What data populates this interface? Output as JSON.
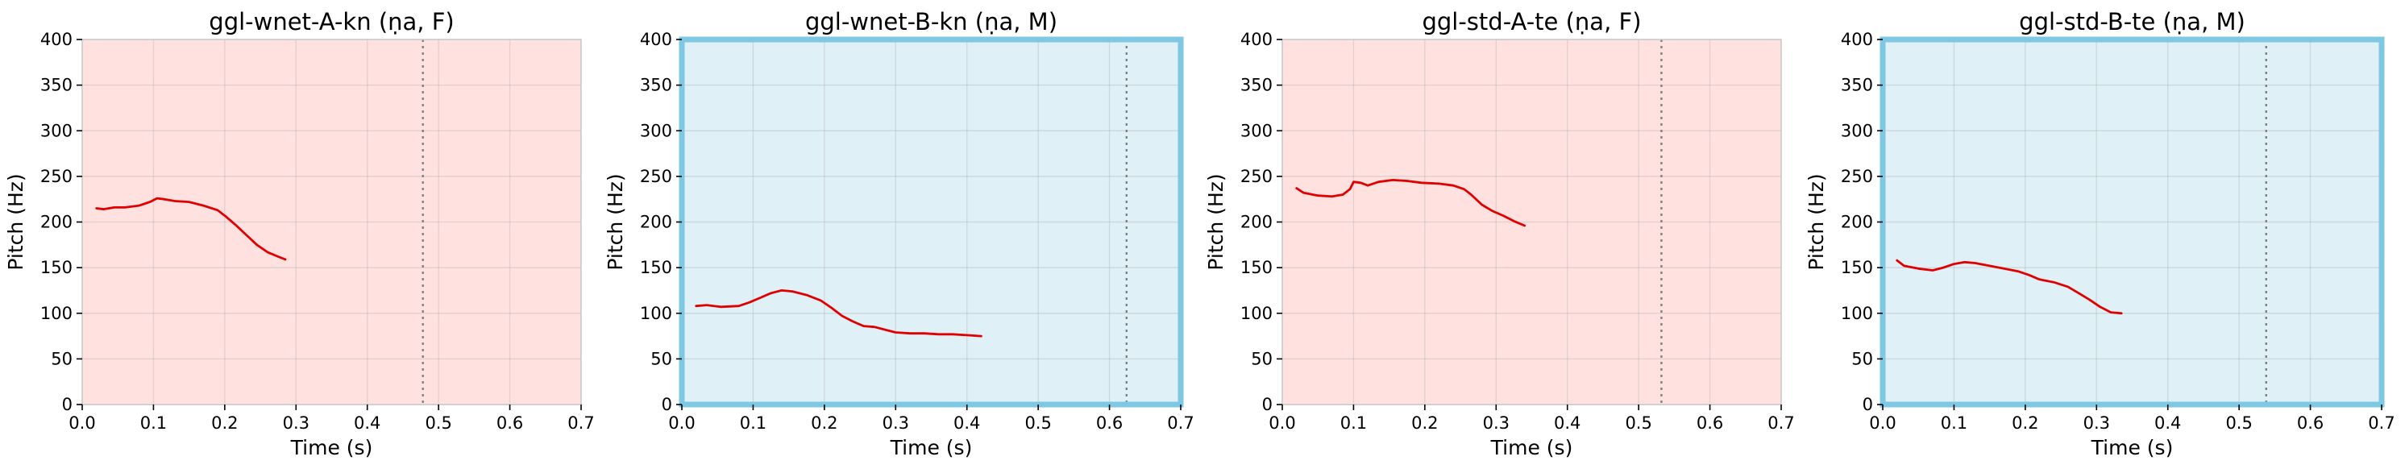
{
  "colors": {
    "female_bg": "#ffe2e0",
    "male_bg": "#dff0f7",
    "male_border": "#7ec8e3",
    "default_border": "#c9c9c9",
    "pitch_line": "#e00000",
    "end_marker": "#808080"
  },
  "chart_data": [
    {
      "type": "line",
      "title": "ggl-wnet-A-kn (ṇa, F)",
      "xlabel": "Time (s)",
      "ylabel": "Pitch (Hz)",
      "xlim": [
        0.0,
        0.7
      ],
      "ylim": [
        0,
        400
      ],
      "xticks": [
        "0.0",
        "0.1",
        "0.2",
        "0.3",
        "0.4",
        "0.5",
        "0.6",
        "0.7"
      ],
      "yticks": [
        "0",
        "50",
        "100",
        "150",
        "200",
        "250",
        "300",
        "350",
        "400"
      ],
      "grid": true,
      "gender": "F",
      "end_time": 0.478,
      "series": [
        {
          "x": [
            0.02,
            0.03,
            0.045,
            0.06,
            0.08,
            0.095,
            0.105,
            0.115,
            0.13,
            0.15,
            0.17,
            0.19,
            0.2,
            0.215,
            0.23,
            0.245,
            0.26,
            0.275,
            0.285
          ],
          "y": [
            215,
            214,
            216,
            216,
            218,
            222,
            226,
            225,
            223,
            222,
            218,
            213,
            207,
            197,
            186,
            175,
            167,
            162,
            159
          ]
        }
      ]
    },
    {
      "type": "line",
      "title": "ggl-wnet-B-kn (ṇa, M)",
      "xlabel": "Time (s)",
      "ylabel": "Pitch (Hz)",
      "xlim": [
        0.0,
        0.7
      ],
      "ylim": [
        0,
        400
      ],
      "xticks": [
        "0.0",
        "0.1",
        "0.2",
        "0.3",
        "0.4",
        "0.5",
        "0.6",
        "0.7"
      ],
      "yticks": [
        "0",
        "50",
        "100",
        "150",
        "200",
        "250",
        "300",
        "350",
        "400"
      ],
      "grid": true,
      "gender": "M",
      "end_time": 0.624,
      "series": [
        {
          "x": [
            0.02,
            0.035,
            0.055,
            0.08,
            0.095,
            0.11,
            0.125,
            0.14,
            0.155,
            0.175,
            0.195,
            0.21,
            0.225,
            0.24,
            0.255,
            0.27,
            0.285,
            0.3,
            0.32,
            0.34,
            0.36,
            0.38,
            0.4,
            0.42
          ],
          "y": [
            108,
            109,
            107,
            108,
            112,
            117,
            122,
            125,
            124,
            120,
            114,
            106,
            97,
            91,
            86,
            85,
            82,
            79,
            78,
            78,
            77,
            77,
            76,
            75
          ]
        }
      ]
    },
    {
      "type": "line",
      "title": "ggl-std-A-te (ṇa, F)",
      "xlabel": "Time (s)",
      "ylabel": "Pitch (Hz)",
      "xlim": [
        0.0,
        0.7
      ],
      "ylim": [
        0,
        400
      ],
      "xticks": [
        "0.0",
        "0.1",
        "0.2",
        "0.3",
        "0.4",
        "0.5",
        "0.6",
        "0.7"
      ],
      "yticks": [
        "0",
        "50",
        "100",
        "150",
        "200",
        "250",
        "300",
        "350",
        "400"
      ],
      "grid": true,
      "gender": "F",
      "end_time": 0.532,
      "series": [
        {
          "x": [
            0.02,
            0.03,
            0.05,
            0.07,
            0.085,
            0.095,
            0.1,
            0.11,
            0.12,
            0.135,
            0.155,
            0.175,
            0.195,
            0.22,
            0.24,
            0.255,
            0.265,
            0.28,
            0.295,
            0.31,
            0.325,
            0.34
          ],
          "y": [
            237,
            232,
            229,
            228,
            230,
            236,
            244,
            243,
            240,
            244,
            246,
            245,
            243,
            242,
            240,
            236,
            230,
            219,
            212,
            207,
            201,
            196
          ]
        }
      ]
    },
    {
      "type": "line",
      "title": "ggl-std-B-te (ṇa, M)",
      "xlabel": "Time (s)",
      "ylabel": "Pitch (Hz)",
      "xlim": [
        0.0,
        0.7
      ],
      "ylim": [
        0,
        400
      ],
      "xticks": [
        "0.0",
        "0.1",
        "0.2",
        "0.3",
        "0.4",
        "0.5",
        "0.6",
        "0.7"
      ],
      "yticks": [
        "0",
        "50",
        "100",
        "150",
        "200",
        "250",
        "300",
        "350",
        "400"
      ],
      "grid": true,
      "gender": "M",
      "end_time": 0.538,
      "series": [
        {
          "x": [
            0.02,
            0.03,
            0.05,
            0.07,
            0.085,
            0.1,
            0.115,
            0.13,
            0.15,
            0.17,
            0.19,
            0.205,
            0.22,
            0.24,
            0.26,
            0.275,
            0.29,
            0.305,
            0.32,
            0.335
          ],
          "y": [
            158,
            152,
            149,
            147,
            150,
            154,
            156,
            155,
            152,
            149,
            146,
            142,
            137,
            134,
            129,
            122,
            115,
            107,
            101,
            100
          ]
        }
      ]
    }
  ]
}
